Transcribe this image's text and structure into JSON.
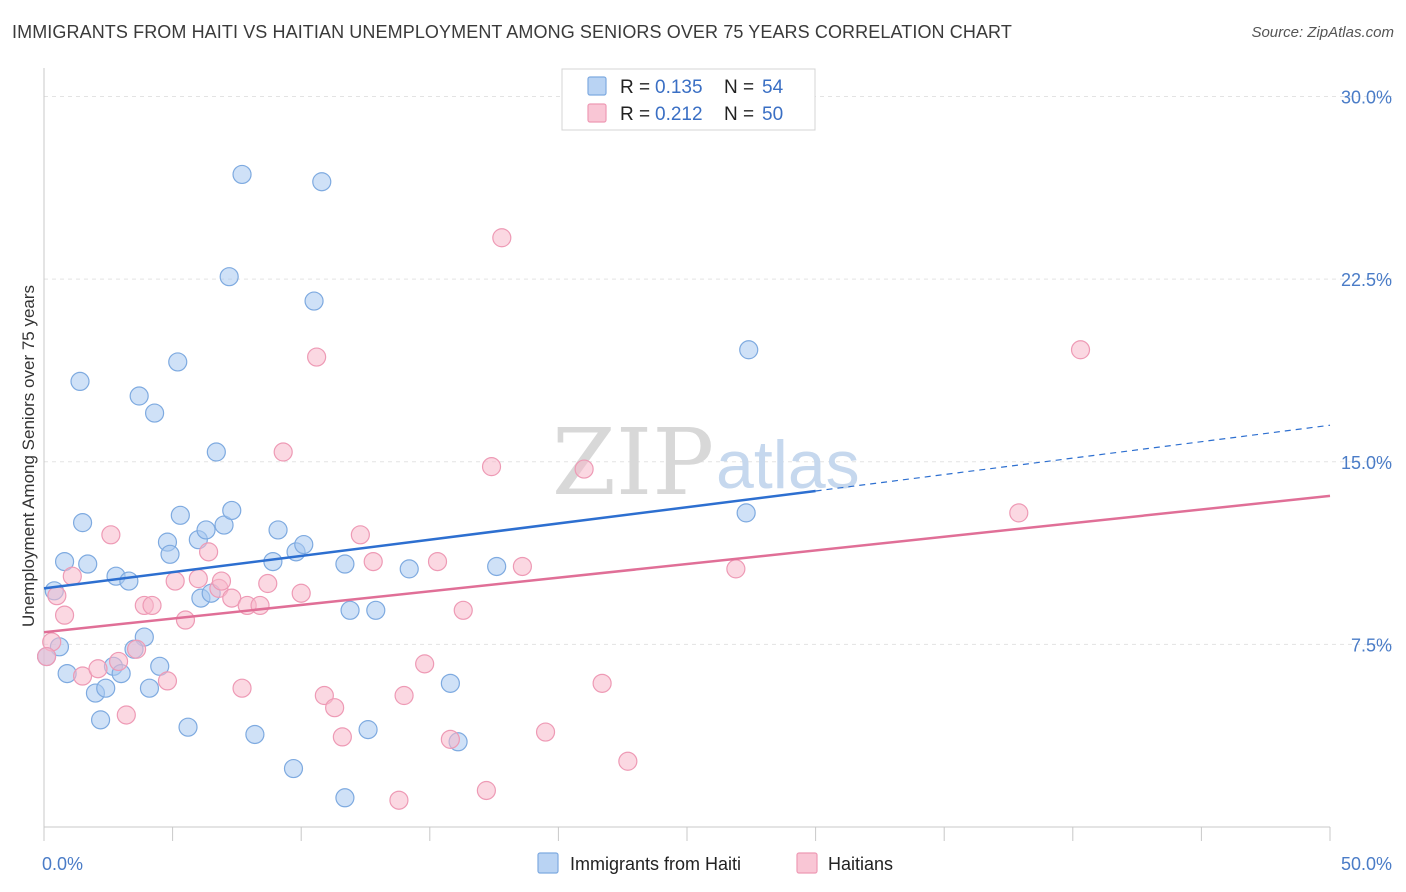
{
  "title": "IMMIGRANTS FROM HAITI VS HAITIAN UNEMPLOYMENT AMONG SENIORS OVER 75 YEARS CORRELATION CHART",
  "source": "Source: ZipAtlas.com",
  "watermark": {
    "zip": "ZIP",
    "atlas": "atlas"
  },
  "colors": {
    "blue": "#a8c8f0",
    "blue_stroke": "#7eaae0",
    "blue_line": "#2d6fd0",
    "pink": "#f7b8cb",
    "pink_stroke": "#ee9ab5",
    "pink_line": "#e06f97",
    "grid": "#e3e3e3",
    "axis_text": "#4a7cc7"
  },
  "legend": {
    "row1": {
      "r_label": "R = ",
      "r_value": "0.135",
      "n_label": "N = ",
      "n_value": "54"
    },
    "row2": {
      "r_label": "R = ",
      "r_value": "0.212",
      "n_label": "N = ",
      "n_value": "50"
    }
  },
  "chart_data": {
    "type": "scatter",
    "xlabel": "",
    "ylabel": "Unemployment Among Seniors over 75 years",
    "xlim": [
      0,
      50
    ],
    "ylim": [
      0,
      31.5
    ],
    "x_tick_labels": [
      {
        "value": 0,
        "label": "0.0%"
      },
      {
        "value": 50,
        "label": "50.0%"
      }
    ],
    "y_tick_labels": [
      {
        "value": 7.5,
        "label": "7.5%"
      },
      {
        "value": 15,
        "label": "15.0%"
      },
      {
        "value": 22.5,
        "label": "22.5%"
      },
      {
        "value": 30,
        "label": "30.0%"
      }
    ],
    "series": [
      {
        "name": "Immigrants from Haiti",
        "color": "#a8c8f0",
        "trend": {
          "x0": 0,
          "y0": 9.8,
          "x1": 30,
          "y1": 13.8,
          "dashed_to_x": 50,
          "dashed_to_y": 16.5
        },
        "points": [
          [
            0.4,
            9.7
          ],
          [
            0.6,
            7.4
          ],
          [
            0.8,
            10.9
          ],
          [
            0.9,
            6.3
          ],
          [
            1.4,
            18.3
          ],
          [
            1.5,
            12.5
          ],
          [
            1.7,
            10.8
          ],
          [
            2.0,
            5.5
          ],
          [
            2.2,
            4.4
          ],
          [
            2.4,
            5.7
          ],
          [
            2.7,
            6.6
          ],
          [
            2.8,
            10.3
          ],
          [
            3.0,
            6.3
          ],
          [
            3.3,
            10.1
          ],
          [
            3.7,
            17.7
          ],
          [
            3.9,
            7.8
          ],
          [
            4.1,
            5.7
          ],
          [
            4.3,
            17.0
          ],
          [
            4.5,
            6.6
          ],
          [
            4.8,
            11.7
          ],
          [
            4.9,
            11.2
          ],
          [
            5.2,
            19.1
          ],
          [
            5.3,
            12.8
          ],
          [
            5.6,
            4.1
          ],
          [
            6.0,
            11.8
          ],
          [
            6.1,
            9.4
          ],
          [
            6.3,
            12.2
          ],
          [
            6.5,
            9.6
          ],
          [
            6.7,
            15.4
          ],
          [
            7.0,
            12.4
          ],
          [
            7.2,
            22.6
          ],
          [
            7.3,
            13.0
          ],
          [
            7.7,
            26.8
          ],
          [
            8.2,
            3.8
          ],
          [
            8.9,
            10.9
          ],
          [
            9.1,
            12.2
          ],
          [
            9.7,
            2.4
          ],
          [
            9.8,
            11.3
          ],
          [
            10.1,
            11.6
          ],
          [
            10.5,
            21.6
          ],
          [
            10.8,
            26.5
          ],
          [
            11.7,
            10.8
          ],
          [
            11.7,
            1.2
          ],
          [
            11.9,
            8.9
          ],
          [
            12.6,
            4.0
          ],
          [
            12.9,
            8.9
          ],
          [
            14.2,
            10.6
          ],
          [
            15.8,
            5.9
          ],
          [
            16.1,
            3.5
          ],
          [
            17.6,
            10.7
          ],
          [
            27.3,
            12.9
          ],
          [
            27.4,
            19.6
          ],
          [
            0.1,
            7.0
          ],
          [
            3.5,
            7.3
          ]
        ]
      },
      {
        "name": "Haitians",
        "color": "#f7b8cb",
        "trend": {
          "x0": 0,
          "y0": 8.0,
          "x1": 50,
          "y1": 13.6
        },
        "points": [
          [
            0.3,
            7.6
          ],
          [
            0.5,
            9.5
          ],
          [
            0.8,
            8.7
          ],
          [
            1.1,
            10.3
          ],
          [
            1.5,
            6.2
          ],
          [
            2.1,
            6.5
          ],
          [
            2.6,
            12.0
          ],
          [
            2.9,
            6.8
          ],
          [
            3.2,
            4.6
          ],
          [
            3.6,
            7.3
          ],
          [
            3.9,
            9.1
          ],
          [
            4.2,
            9.1
          ],
          [
            4.8,
            6.0
          ],
          [
            5.1,
            10.1
          ],
          [
            5.5,
            8.5
          ],
          [
            6.0,
            10.2
          ],
          [
            6.4,
            11.3
          ],
          [
            6.8,
            9.8
          ],
          [
            6.9,
            10.1
          ],
          [
            7.3,
            9.4
          ],
          [
            7.7,
            5.7
          ],
          [
            7.9,
            9.1
          ],
          [
            8.4,
            9.1
          ],
          [
            8.7,
            10.0
          ],
          [
            9.3,
            15.4
          ],
          [
            10.0,
            9.6
          ],
          [
            10.6,
            19.3
          ],
          [
            10.9,
            5.4
          ],
          [
            11.3,
            4.9
          ],
          [
            11.6,
            3.7
          ],
          [
            12.3,
            12.0
          ],
          [
            12.8,
            10.9
          ],
          [
            13.8,
            1.1
          ],
          [
            14.0,
            5.4
          ],
          [
            14.8,
            6.7
          ],
          [
            15.3,
            10.9
          ],
          [
            15.8,
            3.6
          ],
          [
            16.3,
            8.9
          ],
          [
            17.2,
            1.5
          ],
          [
            17.4,
            14.8
          ],
          [
            17.8,
            24.2
          ],
          [
            18.6,
            10.7
          ],
          [
            19.5,
            3.9
          ],
          [
            21.0,
            14.7
          ],
          [
            21.7,
            5.9
          ],
          [
            22.7,
            2.7
          ],
          [
            26.9,
            10.6
          ],
          [
            37.9,
            12.9
          ],
          [
            40.3,
            19.6
          ],
          [
            0.1,
            7.0
          ]
        ]
      }
    ],
    "legend_position": "top-center",
    "grid": true
  }
}
